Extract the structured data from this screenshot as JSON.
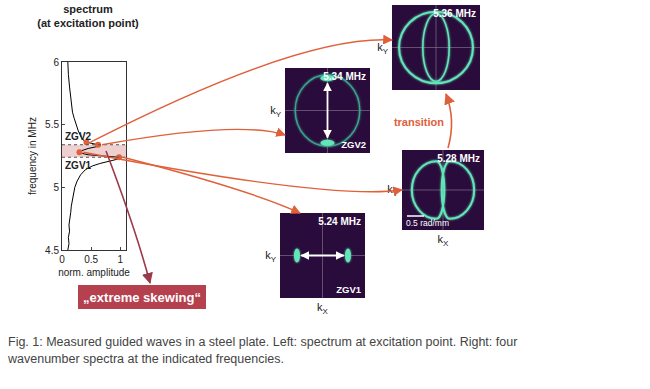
{
  "chart_data": {
    "type": "line",
    "title": [
      "spectrum",
      "(at excitation point)"
    ],
    "x_label": "norm. amplitude",
    "y_label": "frequency in MHz",
    "x": [
      0.1,
      0.12,
      0.11,
      0.13,
      0.12,
      0.14,
      0.15,
      0.16,
      0.18,
      0.2,
      0.22,
      0.26,
      0.32,
      0.4,
      0.52,
      0.65,
      0.85,
      1.0,
      0.98,
      0.7,
      0.45,
      0.35,
      0.3,
      0.32,
      0.38,
      0.45,
      0.55,
      0.65,
      0.62,
      0.5,
      0.42,
      0.36,
      0.33,
      0.28,
      0.24,
      0.21,
      0.18,
      0.15,
      0.13,
      0.11,
      0.1
    ],
    "y": [
      4.5,
      4.55,
      4.6,
      4.65,
      4.7,
      4.75,
      4.8,
      4.85,
      4.9,
      4.95,
      5.0,
      5.05,
      5.1,
      5.14,
      5.17,
      5.19,
      5.21,
      5.23,
      5.24,
      5.25,
      5.26,
      5.27,
      5.28,
      5.29,
      5.3,
      5.31,
      5.32,
      5.33,
      5.34,
      5.35,
      5.36,
      5.38,
      5.4,
      5.45,
      5.5,
      5.55,
      5.6,
      5.7,
      5.8,
      5.9,
      6.0
    ],
    "color": "#000000",
    "xlim": [
      0,
      1.1
    ],
    "ylim": [
      4.5,
      6
    ],
    "xticks": [
      0,
      0.5,
      1
    ],
    "yticks": [
      4.5,
      5,
      5.5,
      6
    ],
    "grid": false,
    "band": [
      5.24,
      5.34
    ],
    "annotations": [
      {
        "text": "ZGV2",
        "y": 5.34
      },
      {
        "text": "ZGV1",
        "y": 5.24
      }
    ]
  },
  "wavenumber_spectra": [
    {
      "label": "5.36 MHz",
      "frequency": 5.36,
      "amplitude": 0.42
    },
    {
      "label": "5.34 MHz",
      "tag": "ZGV2",
      "frequency": 5.34,
      "amplitude": 0.62
    },
    {
      "label": "5.28 MHz",
      "frequency": 5.28,
      "amplitude": 0.3
    },
    {
      "label": "5.24 MHz",
      "tag": "ZGV1",
      "frequency": 5.24,
      "amplitude": 0.98
    }
  ],
  "axis_labels": {
    "x": {
      "base": "k",
      "sub": "X"
    },
    "y": {
      "base": "k",
      "sub": "Y"
    }
  },
  "skewing_label": "„extreme skewing“",
  "transition_label": "transition",
  "scale_bar_label": "0.5 rad/mm",
  "caption": "Fig. 1: Measured guided waves in a steel plate. Left: spectrum at excitation point. Right: four wavenumber spectra at the indicated frequencies."
}
